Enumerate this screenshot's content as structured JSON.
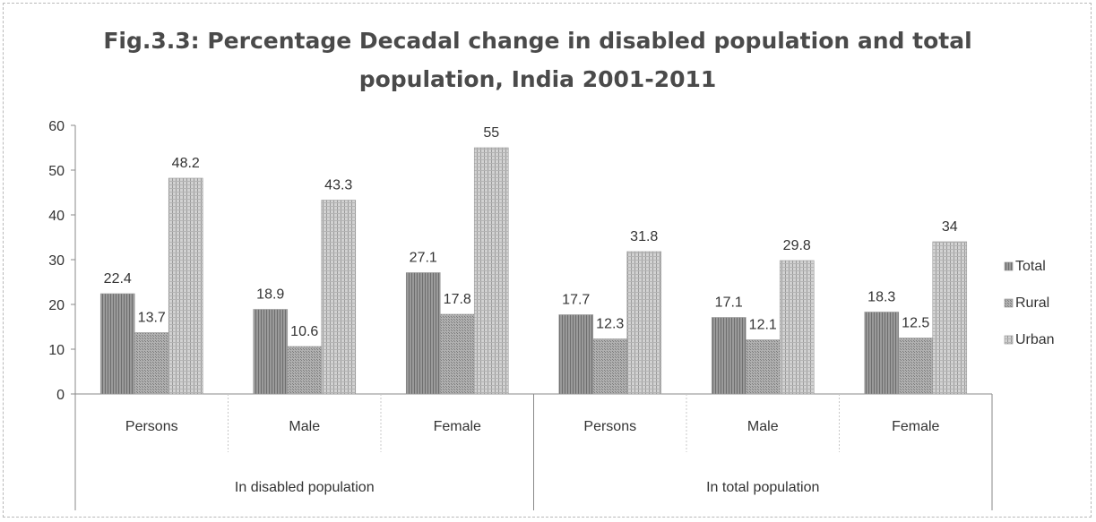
{
  "chart_data": {
    "type": "bar",
    "title_lines": [
      "Fig.3.3: Percentage Decadal change in disabled population and total",
      "population, India 2001-2011"
    ],
    "xlabel": "",
    "ylabel": "",
    "ylim": [
      0,
      60
    ],
    "yticks": [
      0,
      10,
      20,
      30,
      40,
      50,
      60
    ],
    "grid": false,
    "legend_position": "right",
    "groups": [
      {
        "label": "In disabled population",
        "categories": [
          "Persons",
          "Male",
          "Female"
        ]
      },
      {
        "label": "In total population",
        "categories": [
          "Persons",
          "Male",
          "Female"
        ]
      }
    ],
    "categories": [
      "Persons",
      "Male",
      "Female",
      "Persons",
      "Male",
      "Female"
    ],
    "series": [
      {
        "name": "Total",
        "values": [
          22.4,
          18.9,
          27.1,
          17.7,
          17.1,
          18.3
        ],
        "labels": [
          "22.4",
          "18.9",
          "27.1",
          "17.7",
          "17.1",
          "18.3"
        ],
        "color": "#8c8c8c"
      },
      {
        "name": "Rural",
        "values": [
          13.7,
          10.6,
          17.8,
          12.3,
          12.1,
          12.5
        ],
        "labels": [
          "13.7",
          "10.6",
          "17.8",
          "12.3",
          "12.1",
          "12.5"
        ],
        "color": "#a3a3a3"
      },
      {
        "name": "Urban",
        "values": [
          48.2,
          43.3,
          55,
          31.8,
          29.8,
          34
        ],
        "labels": [
          "48.2",
          "43.3",
          "55",
          "31.8",
          "29.8",
          "34"
        ],
        "color": "#c4c4c4"
      }
    ]
  }
}
